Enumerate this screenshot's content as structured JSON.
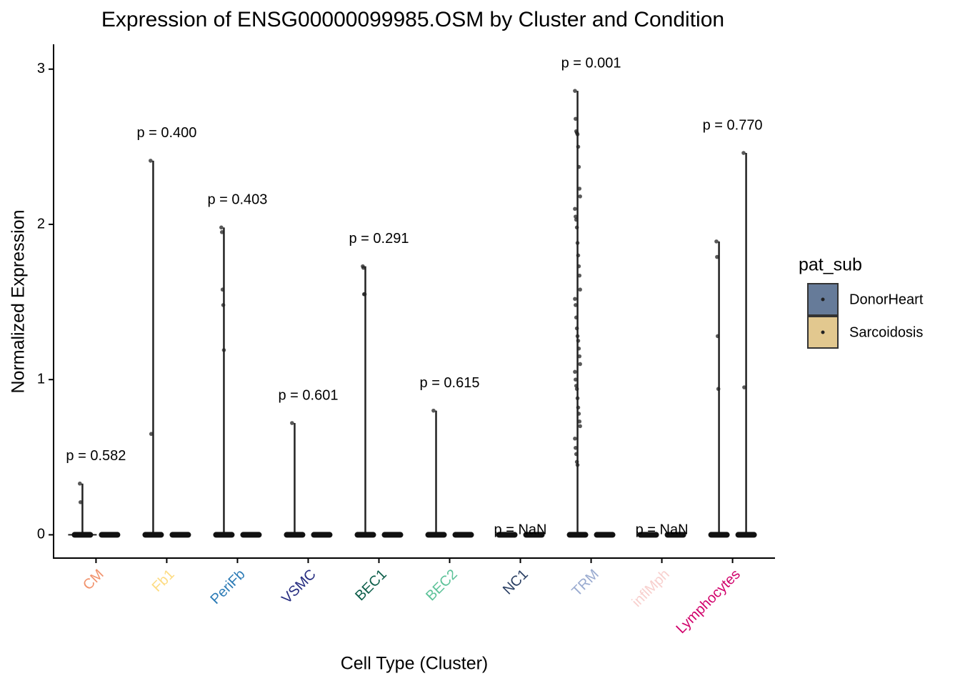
{
  "chart_data": {
    "type": "violin-jitter",
    "title": "Expression of ENSG00000099985.OSM by Cluster and Condition",
    "x_label": "Cell Type (Cluster)",
    "y_label": "Normalized Expression",
    "categories": [
      "CM",
      "Fb1",
      "PeriFb",
      "VSMC",
      "BEC1",
      "BEC2",
      "NC1",
      "TRM",
      "inflMph",
      "Lymphocytes"
    ],
    "category_colors": [
      "#f1936d",
      "#fddc83",
      "#2c7bb6",
      "#252c80",
      "#0d5e4a",
      "#5dc299",
      "#2a3f63",
      "#9aabd0",
      "#f8d0ce",
      "#d1006b"
    ],
    "pvalue_labels": [
      "p = 0.582",
      "p = 0.400",
      "p = 0.403",
      "p = 0.601",
      "p = 0.291",
      "p = 0.615",
      "p = NaN",
      "p = 0.001",
      "p = NaN",
      "p = 0.770"
    ],
    "legend_title": "pat_sub",
    "series": [
      {
        "name": "DonorHeart",
        "color": "#667b99",
        "values": [
          [
            0.33,
            0.21,
            0
          ],
          [
            2.41,
            0.65,
            0
          ],
          [
            1.98,
            1.95,
            1.58,
            1.48,
            1.19,
            0
          ],
          [
            0.72,
            0
          ],
          [
            1.73,
            1.72,
            1.55,
            1.55,
            0
          ],
          [
            0.8,
            0
          ],
          [
            0
          ],
          [
            2.86,
            2.68,
            2.6,
            2.59,
            2.58,
            2.5,
            2.37,
            2.23,
            2.18,
            2.1,
            2.05,
            2.03,
            1.98,
            1.88,
            1.8,
            1.73,
            1.67,
            1.58,
            1.52,
            1.48,
            1.4,
            1.33,
            1.28,
            1.25,
            1.2,
            1.15,
            1.1,
            1.05,
            1.0,
            0.96,
            0.94,
            0.88,
            0.82,
            0.78,
            0.73,
            0.7,
            0.62,
            0.56,
            0.52,
            0.47,
            0.45,
            0
          ],
          [
            0
          ],
          [
            1.89,
            1.79,
            1.28,
            0.94,
            0
          ]
        ]
      },
      {
        "name": "Sarcoidosis",
        "color": "#e2c88f",
        "values": [
          [
            0
          ],
          [
            0
          ],
          [
            0
          ],
          [
            0
          ],
          [
            0
          ],
          [
            0
          ],
          [
            0
          ],
          [
            0
          ],
          [
            0
          ],
          [
            2.46,
            0.95,
            0
          ]
        ]
      }
    ],
    "ylim": [
      -0.15,
      3.16
    ],
    "yticks": [
      0,
      1,
      2,
      3
    ]
  }
}
